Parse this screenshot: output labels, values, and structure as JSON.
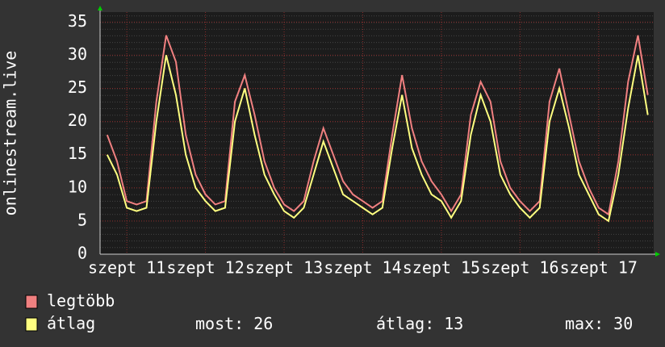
{
  "chart_data": {
    "type": "line",
    "y_label": "onlinestream.live",
    "x": [
      10.75,
      10.875,
      11,
      11.125,
      11.25,
      11.375,
      11.5,
      11.625,
      11.75,
      11.875,
      12,
      12.125,
      12.25,
      12.375,
      12.5,
      12.625,
      12.75,
      12.875,
      13,
      13.125,
      13.25,
      13.375,
      13.5,
      13.625,
      13.75,
      13.875,
      14,
      14.125,
      14.25,
      14.375,
      14.5,
      14.625,
      14.75,
      14.875,
      15,
      15.125,
      15.25,
      15.375,
      15.5,
      15.625,
      15.75,
      15.875,
      16,
      16.125,
      16.25,
      16.375,
      16.5,
      16.625,
      16.75,
      16.875,
      17,
      17.125,
      17.25,
      17.375,
      17.5,
      17.625
    ],
    "series": [
      {
        "name": "legtöbb",
        "color": "#f08080",
        "values": [
          18,
          14,
          8,
          7.5,
          8,
          23,
          33,
          29,
          18,
          12,
          9,
          7.5,
          8,
          23,
          27,
          21,
          14,
          10,
          7.5,
          6.5,
          8,
          14,
          19,
          15,
          11,
          9,
          8,
          7,
          8,
          18,
          27,
          19,
          14,
          11,
          9,
          6.5,
          9,
          21,
          26,
          23,
          14,
          10,
          8,
          6.5,
          8,
          23,
          28,
          21,
          14,
          10,
          7,
          6,
          14,
          26,
          33,
          24
        ]
      },
      {
        "name": "átlag",
        "color": "#ffff80",
        "values": [
          15,
          12,
          7,
          6.5,
          7,
          20,
          30,
          24,
          15,
          10,
          8,
          6.5,
          7,
          20,
          25,
          18,
          12,
          9,
          6.5,
          5.5,
          7,
          12,
          17,
          13,
          9,
          8,
          7,
          6,
          7,
          16,
          24,
          16,
          12,
          9,
          8,
          5.5,
          8,
          18,
          24,
          20,
          12,
          9,
          7,
          5.5,
          7,
          20,
          25,
          19,
          12,
          9,
          6,
          5,
          12,
          22,
          30,
          21
        ]
      }
    ],
    "xlim": [
      10.66,
      17.7
    ],
    "xticks": [
      {
        "value": 11,
        "label": "szept 11"
      },
      {
        "value": 12,
        "label": "szept 12"
      },
      {
        "value": 13,
        "label": "szept 13"
      },
      {
        "value": 14,
        "label": "szept 14"
      },
      {
        "value": 15,
        "label": "szept 15"
      },
      {
        "value": 16,
        "label": "szept 16"
      },
      {
        "value": 17,
        "label": "szept 17"
      }
    ],
    "ylim": [
      0,
      36.5
    ],
    "yticks": [
      0,
      5,
      10,
      15,
      20,
      25,
      30,
      35
    ],
    "grid": true,
    "stats": [
      {
        "label": "most:",
        "value": 26
      },
      {
        "label": "átlag:",
        "value": 13
      },
      {
        "label": "max:",
        "value": 30
      }
    ]
  }
}
